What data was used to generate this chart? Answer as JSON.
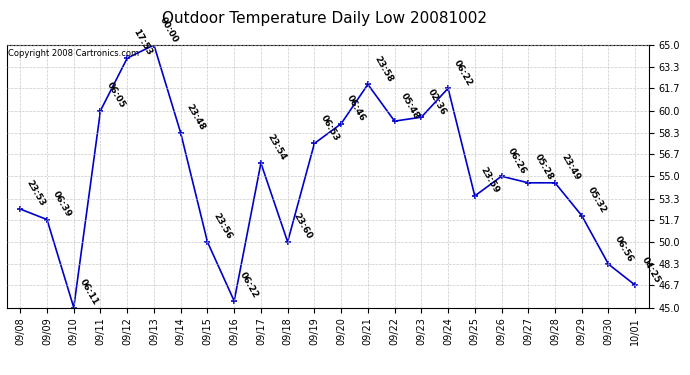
{
  "title": "Outdoor Temperature Daily Low 20081002",
  "copyright": "Copyright 2008 Cartronics.com",
  "dates": [
    "09/08",
    "09/09",
    "09/10",
    "09/11",
    "09/12",
    "09/13",
    "09/14",
    "09/15",
    "09/16",
    "09/17",
    "09/18",
    "09/19",
    "09/20",
    "09/21",
    "09/22",
    "09/23",
    "09/24",
    "09/25",
    "09/26",
    "09/27",
    "09/28",
    "09/29",
    "09/30",
    "10/01"
  ],
  "values": [
    52.5,
    51.7,
    45.0,
    60.0,
    64.0,
    65.0,
    58.3,
    50.0,
    45.5,
    56.0,
    50.0,
    57.5,
    59.0,
    62.0,
    59.2,
    59.5,
    61.7,
    53.5,
    55.0,
    54.5,
    54.5,
    52.0,
    48.3,
    46.7
  ],
  "labels": [
    "23:53",
    "06:39",
    "06:11",
    "06:05",
    "17:53",
    "00:00",
    "23:48",
    "23:56",
    "06:22",
    "23:54",
    "23:60",
    "06:53",
    "06:46",
    "23:58",
    "05:48",
    "02:36",
    "06:22",
    "23:59",
    "06:26",
    "05:28",
    "23:49",
    "05:32",
    "06:56",
    "04:25"
  ],
  "ylim": [
    45.0,
    65.0
  ],
  "yticks": [
    45.0,
    46.7,
    48.3,
    50.0,
    51.7,
    53.3,
    55.0,
    56.7,
    58.3,
    60.0,
    61.7,
    63.3,
    65.0
  ],
  "line_color": "#0000cc",
  "marker_color": "#0000cc",
  "bg_color": "#ffffff",
  "grid_color": "#bbbbbb",
  "title_fontsize": 11,
  "label_fontsize": 6.5,
  "tick_fontsize": 7,
  "copyright_fontsize": 6
}
